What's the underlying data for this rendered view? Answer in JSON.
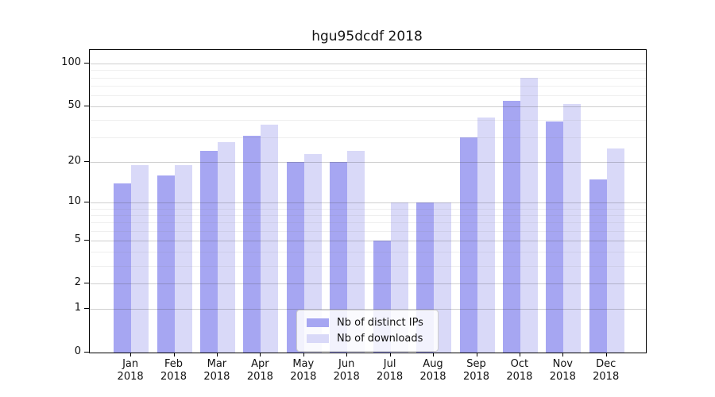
{
  "title": "hgu95dcdf 2018",
  "colors": {
    "bar_distinct_ips": "#a6a6f2",
    "bar_downloads": "#d9d9f8",
    "major_grid": "#cfcfcf",
    "minor_grid": "#eeeeee",
    "axis": "#000000",
    "background": "#ffffff"
  },
  "chart_data": {
    "type": "bar",
    "title": "hgu95dcdf 2018",
    "categories": [
      "Jan",
      "Feb",
      "Mar",
      "Apr",
      "May",
      "Jun",
      "Jul",
      "Aug",
      "Sep",
      "Oct",
      "Nov",
      "Dec"
    ],
    "x_year_suffix": "2018",
    "series": [
      {
        "name": "Nb of distinct IPs",
        "color": "#a6a6f2",
        "values": [
          14,
          16,
          24,
          31,
          20,
          20,
          5,
          10,
          30,
          55,
          39,
          15
        ]
      },
      {
        "name": "Nb of downloads",
        "color": "#d9d9f8",
        "values": [
          19,
          19,
          28,
          37,
          23,
          24,
          10,
          10,
          42,
          80,
          52,
          25
        ]
      }
    ],
    "y_scale": "log10(1+x)",
    "ylim": [
      0,
      125
    ],
    "y_tick_labels": [
      "100",
      "50",
      "20",
      "10",
      "5",
      "2",
      "1",
      "0"
    ],
    "y_tick_values": [
      100,
      50,
      20,
      10,
      5,
      2,
      1,
      0
    ],
    "y_major_gridlines": [
      1,
      2,
      5,
      10,
      20,
      50,
      100
    ],
    "y_minor_gridlines": [
      3,
      4,
      6,
      7,
      8,
      9,
      30,
      40,
      60,
      70,
      80,
      90
    ],
    "grid": true,
    "legend_position": "lower center",
    "legend_entries": [
      "Nb of distinct IPs",
      "Nb of downloads"
    ]
  }
}
